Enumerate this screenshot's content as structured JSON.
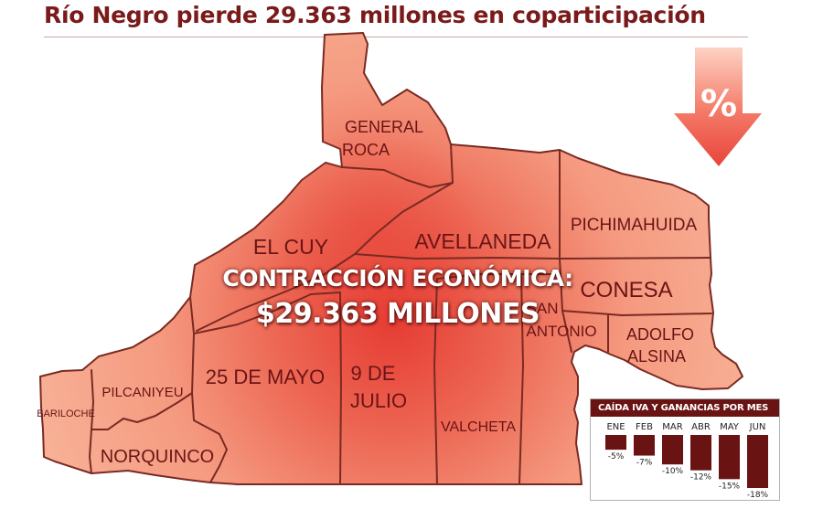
{
  "title": "Río Negro pierde 29.363 millones en coparticipación",
  "headline": {
    "line1": "CONTRACCIÓN ECONÓMICA:",
    "line2": "$29.363 MILLONES"
  },
  "percent_symbol": "%",
  "colors": {
    "title": "#7a1a1a",
    "map_fill": "#f6a088",
    "map_hot": "#e84436",
    "border": "#7a2a22",
    "label": "#6b1416",
    "bar": "#6a1313"
  },
  "departments": [
    {
      "id": "general-roca",
      "lines": [
        "GENERAL",
        "ROCA"
      ]
    },
    {
      "id": "el-cuy",
      "lines": [
        "EL CUY"
      ]
    },
    {
      "id": "avellaneda",
      "lines": [
        "AVELLANEDA"
      ]
    },
    {
      "id": "pichimahuida",
      "lines": [
        "PICHIMAHUIDA"
      ]
    },
    {
      "id": "conesa",
      "lines": [
        "CONESA"
      ]
    },
    {
      "id": "san-antonio",
      "lines": [
        "SAN",
        "ANTONIO"
      ]
    },
    {
      "id": "adolfo-alsina",
      "lines": [
        "ADOLFO",
        "ALSINA"
      ]
    },
    {
      "id": "25-de-mayo",
      "lines": [
        "25 DE MAYO"
      ]
    },
    {
      "id": "9-de-julio",
      "lines": [
        "9 DE",
        "JULIO"
      ]
    },
    {
      "id": "valcheta",
      "lines": [
        "VALCHETA"
      ]
    },
    {
      "id": "pilcaniyeu",
      "lines": [
        "PILCANIYEU"
      ]
    },
    {
      "id": "bariloche",
      "lines": [
        "BARILOCHE"
      ]
    },
    {
      "id": "norquinco",
      "lines": [
        "NORQUINCO"
      ]
    }
  ],
  "chart_data": {
    "type": "bar",
    "title": "CAÍDA IVA Y GANANCIAS POR MES",
    "categories": [
      "ENE",
      "FEB",
      "MAR",
      "ABR",
      "MAY",
      "JUN"
    ],
    "values": [
      -5,
      -7,
      -10,
      -12,
      -15,
      -18
    ],
    "value_labels": [
      "-5%",
      "-7%",
      "-10%",
      "-12%",
      "-15%",
      "-18%"
    ],
    "ylim": [
      -18,
      0
    ]
  }
}
